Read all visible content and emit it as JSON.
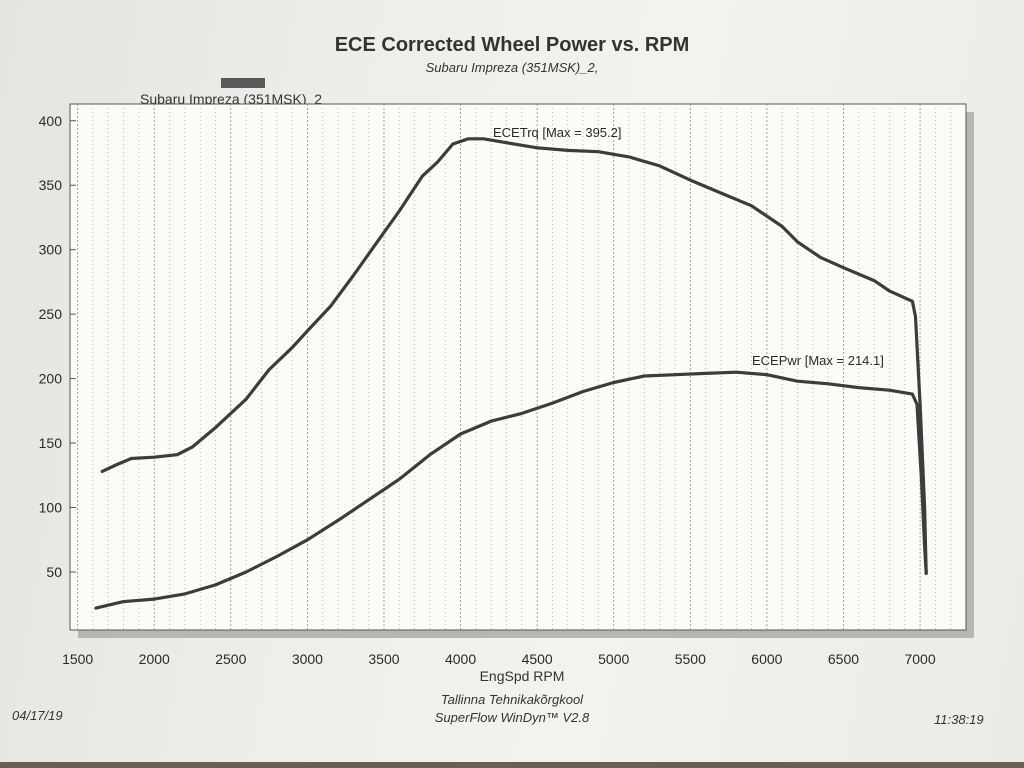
{
  "chart_data": {
    "type": "line",
    "title": "ECE Corrected Wheel Power vs. RPM",
    "subtitle": "Subaru Impreza (351MSK)_2,",
    "legend": [
      "Subaru Impreza (351MSK)_2"
    ],
    "xlabel": "EngSpd  RPM",
    "ylabel": "",
    "xlim": [
      1450,
      7300
    ],
    "ylim": [
      5,
      413
    ],
    "x_ticks": [
      1500,
      2000,
      2500,
      3000,
      3500,
      4000,
      4500,
      5000,
      5500,
      6000,
      6500,
      7000
    ],
    "y_ticks": [
      50,
      100,
      150,
      200,
      250,
      300,
      350,
      400
    ],
    "grid": true,
    "series": [
      {
        "name": "ECETrq",
        "annotation": "ECETrq [Max = 395.2]",
        "points": [
          [
            1660,
            128
          ],
          [
            1750,
            133
          ],
          [
            1850,
            138
          ],
          [
            2000,
            139
          ],
          [
            2150,
            141
          ],
          [
            2250,
            147
          ],
          [
            2400,
            162
          ],
          [
            2600,
            184
          ],
          [
            2750,
            207
          ],
          [
            2900,
            224
          ],
          [
            3000,
            237
          ],
          [
            3150,
            256
          ],
          [
            3300,
            280
          ],
          [
            3450,
            305
          ],
          [
            3600,
            330
          ],
          [
            3750,
            357
          ],
          [
            3850,
            368
          ],
          [
            3950,
            382
          ],
          [
            4050,
            386
          ],
          [
            4150,
            386
          ],
          [
            4300,
            383
          ],
          [
            4500,
            379
          ],
          [
            4700,
            377
          ],
          [
            4900,
            376
          ],
          [
            5100,
            372
          ],
          [
            5300,
            365
          ],
          [
            5500,
            354
          ],
          [
            5700,
            344
          ],
          [
            5900,
            334
          ],
          [
            6100,
            318
          ],
          [
            6200,
            306
          ],
          [
            6350,
            294
          ],
          [
            6500,
            286
          ],
          [
            6700,
            276
          ],
          [
            6800,
            268
          ],
          [
            6950,
            260
          ],
          [
            6970,
            248
          ],
          [
            7000,
            180
          ],
          [
            7030,
            100
          ],
          [
            7040,
            49
          ]
        ]
      },
      {
        "name": "ECEPwr",
        "annotation": "ECEPwr [Max = 214.1]",
        "points": [
          [
            1620,
            22
          ],
          [
            1800,
            27
          ],
          [
            2000,
            29
          ],
          [
            2200,
            33
          ],
          [
            2400,
            40
          ],
          [
            2600,
            50
          ],
          [
            2800,
            62
          ],
          [
            3000,
            75
          ],
          [
            3200,
            90
          ],
          [
            3400,
            106
          ],
          [
            3600,
            122
          ],
          [
            3800,
            141
          ],
          [
            4000,
            157
          ],
          [
            4200,
            167
          ],
          [
            4400,
            173
          ],
          [
            4600,
            181
          ],
          [
            4800,
            190
          ],
          [
            5000,
            197
          ],
          [
            5200,
            202
          ],
          [
            5400,
            203
          ],
          [
            5600,
            204
          ],
          [
            5800,
            205
          ],
          [
            6000,
            203
          ],
          [
            6200,
            198
          ],
          [
            6400,
            196
          ],
          [
            6600,
            193
          ],
          [
            6800,
            191
          ],
          [
            6950,
            188
          ],
          [
            6980,
            180
          ],
          [
            7010,
            120
          ],
          [
            7030,
            70
          ],
          [
            7040,
            49
          ]
        ]
      }
    ]
  },
  "footer": {
    "institution": "Tallinna Tehnikakõrgkool",
    "software": "SuperFlow WinDyn™ V2.8",
    "date": "04/17/19",
    "time": "11:38:19"
  }
}
